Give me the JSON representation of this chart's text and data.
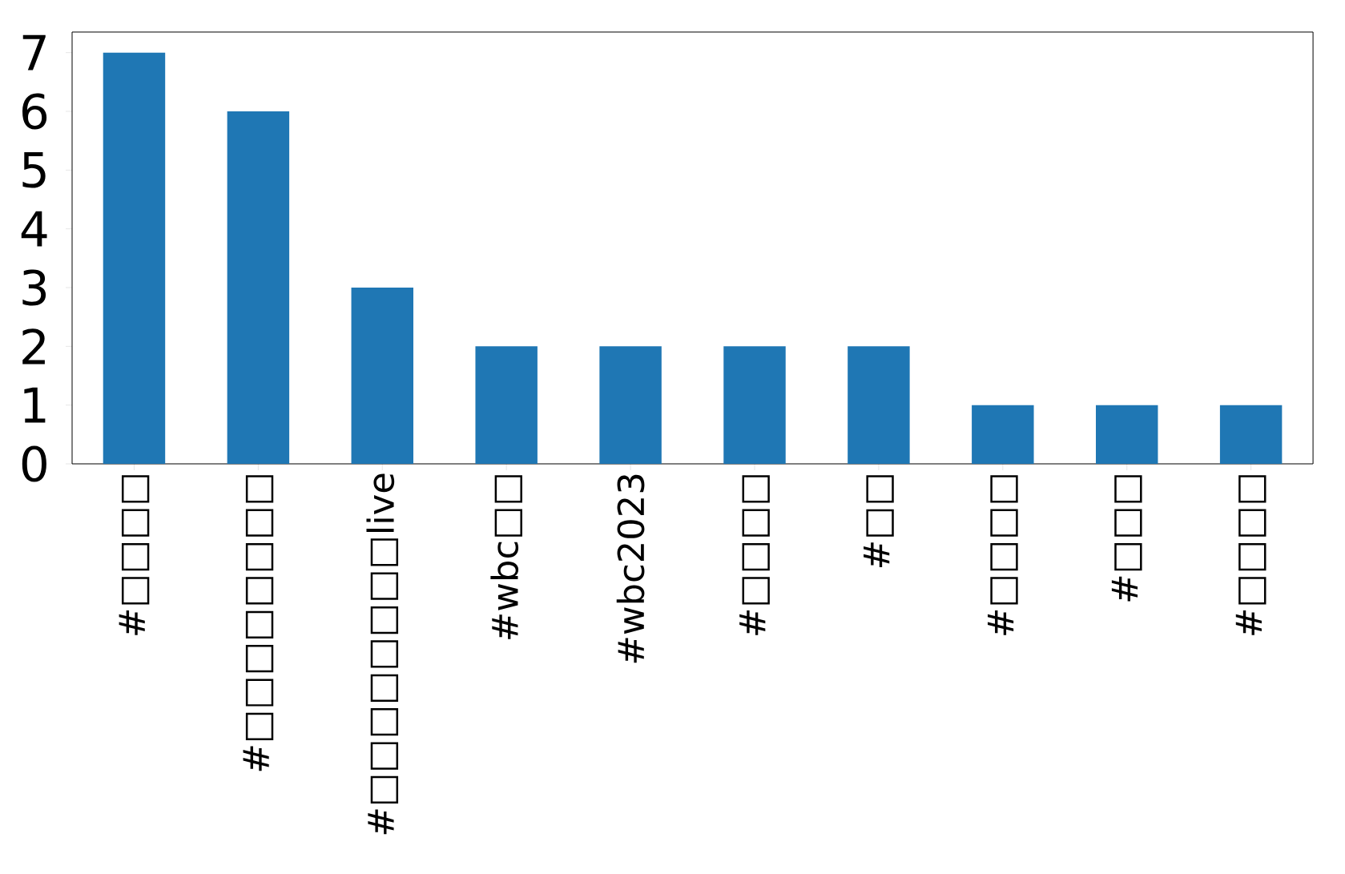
{
  "chart_data": {
    "type": "bar",
    "categories": [
      "#□□□□",
      "#□□□□□□□□",
      "#□□□□□□□□live",
      "#wbc□□",
      "#wbc2023",
      "#□□□□",
      "#□□",
      "#□□□□",
      "#□□□",
      "#□□□□"
    ],
    "values": [
      7,
      6,
      3,
      2,
      2,
      2,
      2,
      1,
      1,
      1
    ],
    "color": "#1f77b4",
    "ylim": [
      0,
      7.35
    ],
    "yticks": [
      0,
      1,
      2,
      3,
      4,
      5,
      6,
      7
    ],
    "grid": false
  }
}
